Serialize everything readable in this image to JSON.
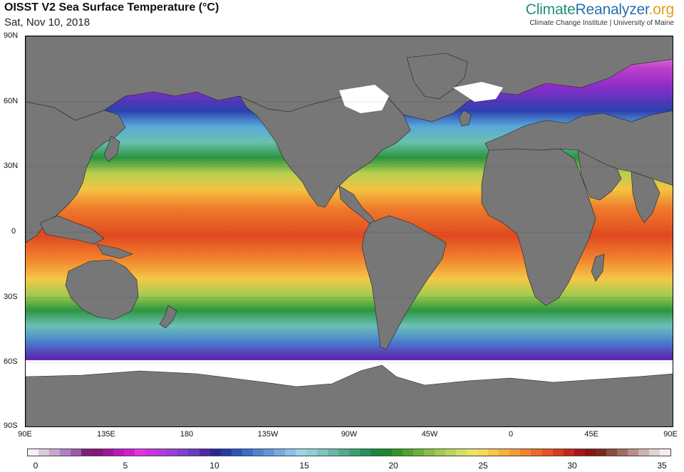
{
  "title": "OISST V2 Sea Surface Temperature (°C)",
  "date": "Sat, Nov 10, 2018",
  "brand": {
    "part1": "Climate",
    "part2": "Reanalyzer",
    "part3": ".org",
    "subtitle": "Climate Change Institute | University of Maine"
  },
  "map": {
    "lat_labels": [
      "90N",
      "60N",
      "30N",
      "0",
      "30S",
      "60S",
      "90S"
    ],
    "lon_labels": [
      "90E",
      "135E",
      "180",
      "135W",
      "90W",
      "45W",
      "0",
      "45E",
      "90E"
    ],
    "land_color": "#777777",
    "ice_color": "#ffffff"
  },
  "colorbar": {
    "labels": [
      "0",
      "5",
      "10",
      "15",
      "20",
      "25",
      "30",
      "35"
    ],
    "colors": [
      "#f4eef5",
      "#dccbe0",
      "#c7a6cf",
      "#b07fbf",
      "#9a5aab",
      "#7c1f7e",
      "#8b137f",
      "#a0149a",
      "#bb18b8",
      "#d41ccf",
      "#e233e0",
      "#cc33e0",
      "#b13be0",
      "#9840d9",
      "#7f40cc",
      "#6a3ac0",
      "#5028a8",
      "#2a2496",
      "#1f3ca8",
      "#2a56b8",
      "#3a6ec8",
      "#4e84d0",
      "#6297d8",
      "#76abe0",
      "#8ac0e6",
      "#9ed5e8",
      "#8fd0d6",
      "#7cc4c0",
      "#68b8a8",
      "#52ab8e",
      "#3c9f72",
      "#279258",
      "#168840",
      "#198a2c",
      "#2f9626",
      "#4fa42c",
      "#6ab236",
      "#86bf42",
      "#a1cb4e",
      "#bad55a",
      "#d2de64",
      "#e8e46a",
      "#f4da58",
      "#f8c64a",
      "#f8b040",
      "#f69a36",
      "#f2822e",
      "#ec6a28",
      "#e45222",
      "#d93a1e",
      "#c7241c",
      "#a8161a",
      "#8a1410",
      "#7a2a1a",
      "#8e4a3a",
      "#a26c60",
      "#b88e86",
      "#cdb2ac",
      "#e2d4d0",
      "#f4eeec"
    ]
  }
}
